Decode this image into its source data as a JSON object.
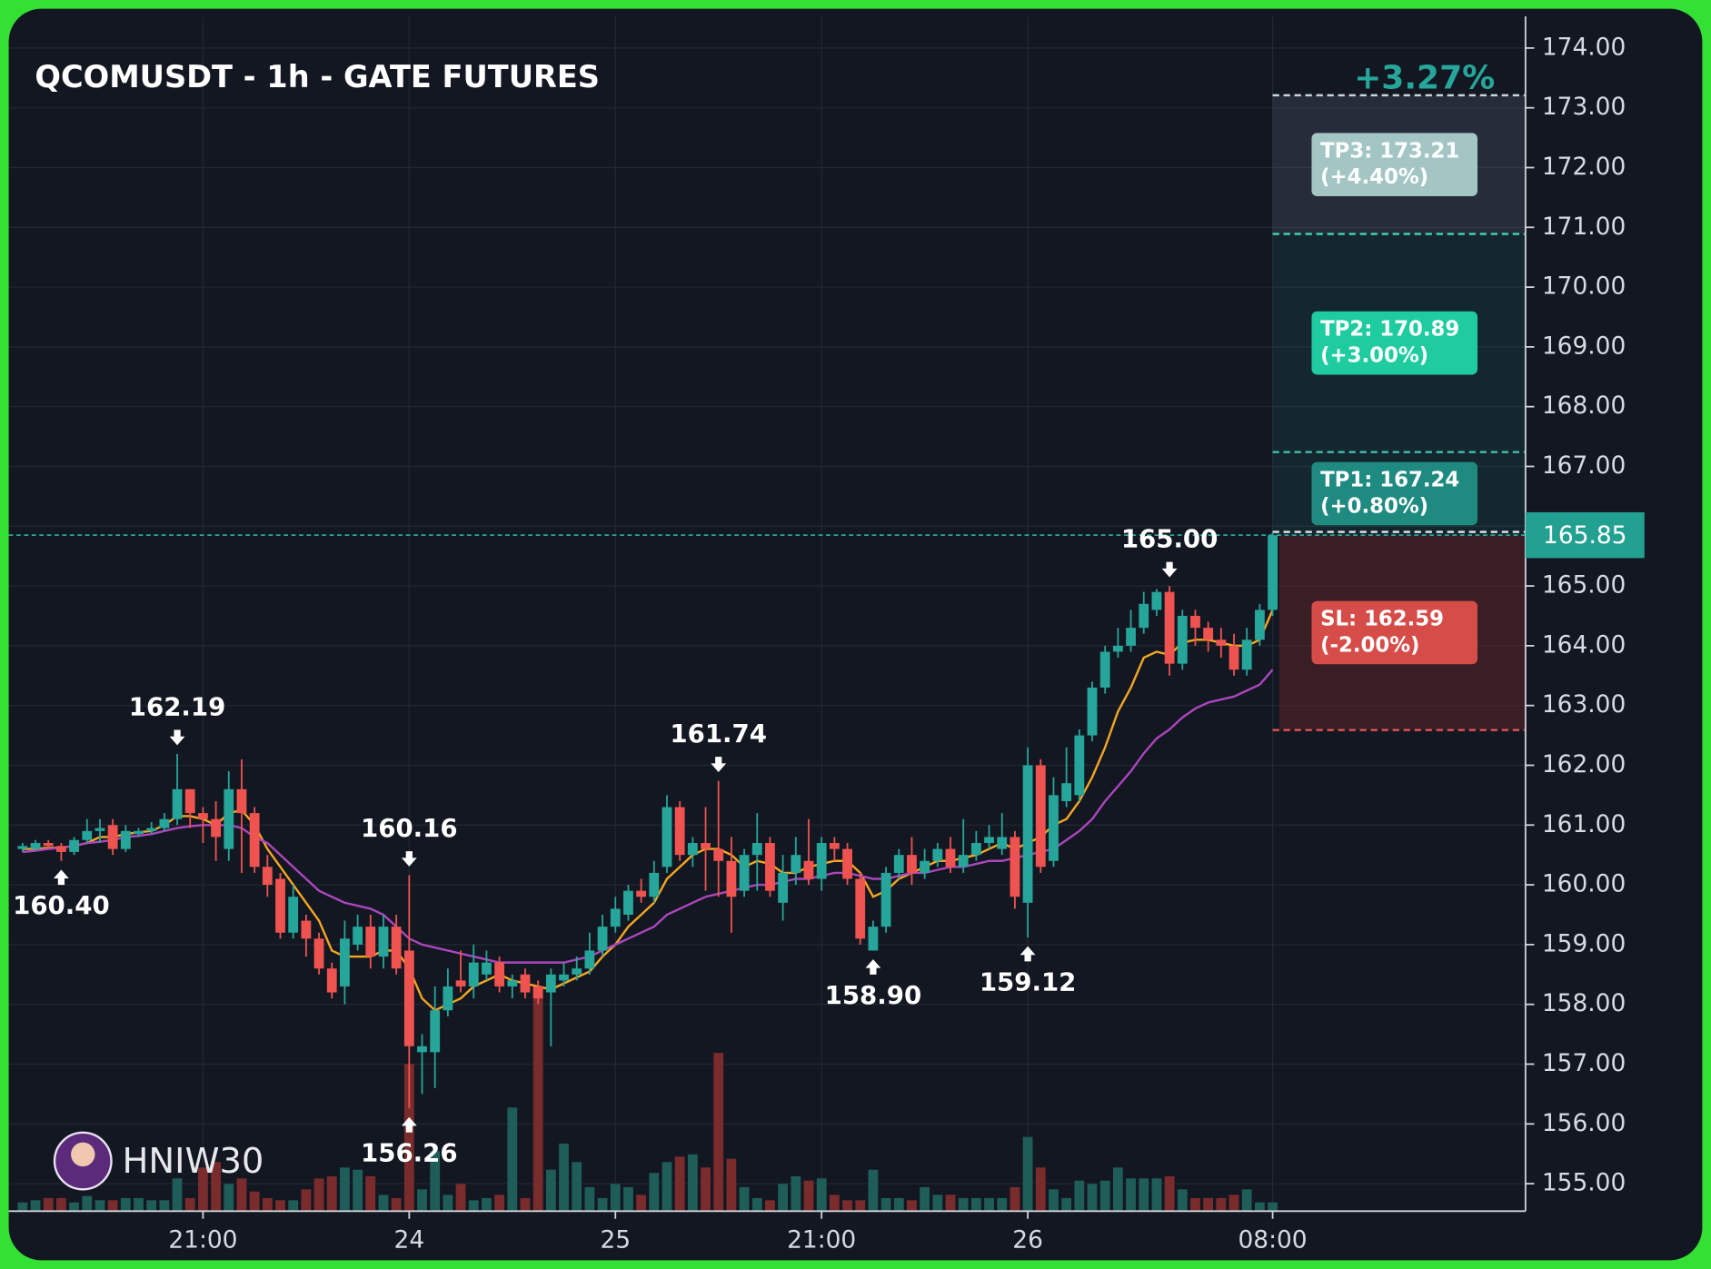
{
  "chart_data": {
    "type": "candlestick",
    "title": "QCOMUSDT - 1h - GATE FUTURES",
    "change_label": "+3.27%",
    "watermark": "HNIW30",
    "up_color": "#26a69a",
    "down_color": "#ef5350",
    "grid": true,
    "categories": [
      null,
      null,
      null,
      null,
      null,
      null,
      null,
      null,
      null,
      null,
      null,
      null,
      null,
      null,
      "21:00",
      null,
      null,
      null,
      null,
      null,
      null,
      null,
      null,
      null,
      null,
      null,
      null,
      null,
      null,
      null,
      "24",
      null,
      null,
      null,
      null,
      null,
      null,
      null,
      null,
      null,
      null,
      null,
      null,
      null,
      null,
      null,
      "25",
      null,
      null,
      null,
      null,
      null,
      null,
      null,
      null,
      null,
      null,
      null,
      null,
      null,
      null,
      null,
      "21:00",
      null,
      null,
      null,
      null,
      null,
      null,
      null,
      null,
      null,
      null,
      null,
      null,
      null,
      null,
      null,
      "26",
      null,
      null,
      null,
      null,
      null,
      null,
      null,
      null,
      null,
      null,
      null,
      null,
      null,
      null,
      null,
      null,
      null,
      null,
      "08:00"
    ],
    "ohlc": [
      [
        160.6,
        160.7,
        160.55,
        160.65
      ],
      [
        160.6,
        160.75,
        160.58,
        160.7
      ],
      [
        160.7,
        160.75,
        160.6,
        160.65
      ],
      [
        160.65,
        160.7,
        160.4,
        160.55
      ],
      [
        160.55,
        160.8,
        160.5,
        160.75
      ],
      [
        160.75,
        161.1,
        160.7,
        160.9
      ],
      [
        160.9,
        161.1,
        160.7,
        160.95
      ],
      [
        161.0,
        161.1,
        160.5,
        160.6
      ],
      [
        160.6,
        161.0,
        160.55,
        160.9
      ],
      [
        160.85,
        160.95,
        160.8,
        160.9
      ],
      [
        160.9,
        161.05,
        160.85,
        160.95
      ],
      [
        160.95,
        161.2,
        160.9,
        161.1
      ],
      [
        161.1,
        162.19,
        161.0,
        161.6
      ],
      [
        161.6,
        161.6,
        160.95,
        161.2
      ],
      [
        161.2,
        161.3,
        160.7,
        161.1
      ],
      [
        161.1,
        161.4,
        160.4,
        160.8
      ],
      [
        160.6,
        161.9,
        160.4,
        161.6
      ],
      [
        161.6,
        162.1,
        160.2,
        161.2
      ],
      [
        161.2,
        161.3,
        160.2,
        160.3
      ],
      [
        160.3,
        160.5,
        159.8,
        160.0
      ],
      [
        160.1,
        160.2,
        159.1,
        159.2
      ],
      [
        159.2,
        160.0,
        159.1,
        159.8
      ],
      [
        159.4,
        159.5,
        158.8,
        159.1
      ],
      [
        159.1,
        159.2,
        158.5,
        158.6
      ],
      [
        158.6,
        158.7,
        158.1,
        158.2
      ],
      [
        158.3,
        159.4,
        158.0,
        159.1
      ],
      [
        159.0,
        159.5,
        158.9,
        159.3
      ],
      [
        159.3,
        159.5,
        158.6,
        158.8
      ],
      [
        158.8,
        159.5,
        158.6,
        159.3
      ],
      [
        159.3,
        159.5,
        158.5,
        158.6
      ],
      [
        158.9,
        160.16,
        156.26,
        157.3
      ],
      [
        157.2,
        157.5,
        156.5,
        157.3
      ],
      [
        157.2,
        158.3,
        156.6,
        157.9
      ],
      [
        157.9,
        158.6,
        157.8,
        158.3
      ],
      [
        158.4,
        158.9,
        158.2,
        158.3
      ],
      [
        158.3,
        159.0,
        158.1,
        158.7
      ],
      [
        158.5,
        158.9,
        158.4,
        158.7
      ],
      [
        158.7,
        158.8,
        158.2,
        158.3
      ],
      [
        158.3,
        158.5,
        158.1,
        158.4
      ],
      [
        158.5,
        158.6,
        158.1,
        158.2
      ],
      [
        158.3,
        158.4,
        158.0,
        158.1
      ],
      [
        158.2,
        158.6,
        157.3,
        158.5
      ],
      [
        158.4,
        158.7,
        158.3,
        158.5
      ],
      [
        158.5,
        158.8,
        158.4,
        158.6
      ],
      [
        158.6,
        159.2,
        158.5,
        158.9
      ],
      [
        158.9,
        159.5,
        158.8,
        159.3
      ],
      [
        159.3,
        159.8,
        159.2,
        159.6
      ],
      [
        159.5,
        160.0,
        159.4,
        159.9
      ],
      [
        159.9,
        160.1,
        159.7,
        159.8
      ],
      [
        159.8,
        160.4,
        159.7,
        160.2
      ],
      [
        160.3,
        161.5,
        160.2,
        161.3
      ],
      [
        161.3,
        161.4,
        160.4,
        160.5
      ],
      [
        160.5,
        160.8,
        160.3,
        160.7
      ],
      [
        160.7,
        161.3,
        159.9,
        160.6
      ],
      [
        160.6,
        161.74,
        159.8,
        160.4
      ],
      [
        160.4,
        160.8,
        159.2,
        159.8
      ],
      [
        159.9,
        160.6,
        159.8,
        160.5
      ],
      [
        160.5,
        161.2,
        159.9,
        160.7
      ],
      [
        160.7,
        160.8,
        159.8,
        159.9
      ],
      [
        159.7,
        160.5,
        159.4,
        160.2
      ],
      [
        160.2,
        160.8,
        160.0,
        160.5
      ],
      [
        160.4,
        161.1,
        160.0,
        160.1
      ],
      [
        160.1,
        160.8,
        159.9,
        160.7
      ],
      [
        160.7,
        160.8,
        160.4,
        160.6
      ],
      [
        160.6,
        160.7,
        160.0,
        160.1
      ],
      [
        160.1,
        160.2,
        159.0,
        159.1
      ],
      [
        158.9,
        159.4,
        158.9,
        159.3
      ],
      [
        159.3,
        160.3,
        159.2,
        160.2
      ],
      [
        160.2,
        160.6,
        160.1,
        160.5
      ],
      [
        160.5,
        160.8,
        160.0,
        160.2
      ],
      [
        160.2,
        160.6,
        160.1,
        160.4
      ],
      [
        160.4,
        160.7,
        160.3,
        160.6
      ],
      [
        160.6,
        160.8,
        160.2,
        160.3
      ],
      [
        160.3,
        161.1,
        160.2,
        160.5
      ],
      [
        160.5,
        160.9,
        160.4,
        160.7
      ],
      [
        160.7,
        161.0,
        160.6,
        160.8
      ],
      [
        160.6,
        161.2,
        160.5,
        160.8
      ],
      [
        160.8,
        160.9,
        159.6,
        159.8
      ],
      [
        159.7,
        162.3,
        159.12,
        162.0
      ],
      [
        162.0,
        162.1,
        160.2,
        160.3
      ],
      [
        160.4,
        161.8,
        160.3,
        161.5
      ],
      [
        161.4,
        162.3,
        161.3,
        161.7
      ],
      [
        161.5,
        162.6,
        161.4,
        162.5
      ],
      [
        162.5,
        163.4,
        162.4,
        163.3
      ],
      [
        163.3,
        164.0,
        163.2,
        163.9
      ],
      [
        163.9,
        164.3,
        163.8,
        164.0
      ],
      [
        164.0,
        164.6,
        163.9,
        164.3
      ],
      [
        164.3,
        164.9,
        164.2,
        164.7
      ],
      [
        164.6,
        164.95,
        164.5,
        164.9
      ],
      [
        164.9,
        165.0,
        163.5,
        163.7
      ],
      [
        163.7,
        164.6,
        163.6,
        164.5
      ],
      [
        164.5,
        164.6,
        164.0,
        164.3
      ],
      [
        164.3,
        164.4,
        163.9,
        164.1
      ],
      [
        164.1,
        164.3,
        163.8,
        164.0
      ],
      [
        164.0,
        164.2,
        163.5,
        163.6
      ],
      [
        163.6,
        164.3,
        163.5,
        164.1
      ],
      [
        164.1,
        164.7,
        164.0,
        164.6
      ],
      [
        164.6,
        165.9,
        164.5,
        165.85
      ]
    ],
    "volume": [
      8,
      10,
      12,
      12,
      8,
      14,
      10,
      10,
      12,
      12,
      10,
      10,
      30,
      12,
      40,
      45,
      25,
      30,
      18,
      12,
      10,
      10,
      20,
      30,
      32,
      40,
      38,
      32,
      15,
      12,
      135,
      20,
      55,
      15,
      25,
      10,
      12,
      15,
      95,
      12,
      205,
      38,
      62,
      45,
      22,
      12,
      25,
      22,
      15,
      35,
      45,
      50,
      52,
      40,
      145,
      48,
      22,
      12,
      10,
      25,
      32,
      28,
      30,
      15,
      10,
      10,
      38,
      12,
      12,
      10,
      22,
      15,
      15,
      12,
      12,
      12,
      12,
      22,
      68,
      40,
      20,
      12,
      28,
      25,
      28,
      40,
      30,
      30,
      30,
      32,
      20,
      12,
      12,
      12,
      15,
      20,
      8,
      8
    ],
    "lines": [
      {
        "color": "#f5a623",
        "values": [
          160.6,
          160.6,
          160.62,
          160.62,
          160.65,
          160.7,
          160.8,
          160.8,
          160.85,
          160.88,
          160.9,
          161.0,
          161.15,
          161.15,
          161.1,
          161.0,
          161.2,
          161.25,
          161.0,
          160.6,
          160.3,
          160.0,
          159.7,
          159.4,
          158.9,
          158.8,
          158.8,
          158.8,
          158.9,
          158.9,
          158.6,
          158.1,
          157.9,
          158.0,
          158.1,
          158.3,
          158.4,
          158.5,
          158.4,
          158.35,
          158.3,
          158.25,
          158.35,
          158.45,
          158.55,
          158.8,
          159.0,
          159.3,
          159.5,
          159.7,
          160.1,
          160.3,
          160.5,
          160.6,
          160.6,
          160.5,
          160.3,
          160.4,
          160.35,
          160.2,
          160.2,
          160.3,
          160.35,
          160.4,
          160.4,
          160.2,
          159.8,
          159.9,
          160.1,
          160.2,
          160.3,
          160.4,
          160.4,
          160.45,
          160.5,
          160.6,
          160.7,
          160.6,
          160.7,
          160.8,
          161.0,
          161.1,
          161.4,
          161.8,
          162.3,
          162.9,
          163.3,
          163.8,
          163.9,
          163.85,
          164.05,
          164.1,
          164.1,
          164.05,
          164.0,
          164.0,
          164.1,
          164.6
        ]
      },
      {
        "color": "#ab47bc",
        "values": [
          160.55,
          160.57,
          160.6,
          160.62,
          160.65,
          160.7,
          160.72,
          160.75,
          160.8,
          160.82,
          160.85,
          160.9,
          160.95,
          160.98,
          161.0,
          161.0,
          161.0,
          160.95,
          160.8,
          160.7,
          160.5,
          160.3,
          160.1,
          159.9,
          159.8,
          159.7,
          159.65,
          159.6,
          159.5,
          159.3,
          159.1,
          159.0,
          158.95,
          158.9,
          158.85,
          158.8,
          158.75,
          158.7,
          158.7,
          158.7,
          158.7,
          158.7,
          158.7,
          158.75,
          158.8,
          158.9,
          159.0,
          159.1,
          159.2,
          159.3,
          159.5,
          159.6,
          159.7,
          159.8,
          159.85,
          159.9,
          159.95,
          160.0,
          160.0,
          160.05,
          160.1,
          160.1,
          160.15,
          160.2,
          160.2,
          160.15,
          160.1,
          160.1,
          160.15,
          160.2,
          160.2,
          160.25,
          160.3,
          160.3,
          160.35,
          160.4,
          160.4,
          160.45,
          160.5,
          160.55,
          160.6,
          160.75,
          160.9,
          161.1,
          161.4,
          161.65,
          161.9,
          162.2,
          162.45,
          162.6,
          162.8,
          162.95,
          163.05,
          163.1,
          163.15,
          163.25,
          163.35,
          163.6
        ]
      }
    ],
    "ylim": [
      154.54,
      174.53
    ],
    "yticks": [
      {
        "value": 155,
        "label": "155.00"
      },
      {
        "value": 156,
        "label": "156.00"
      },
      {
        "value": 157,
        "label": "157.00"
      },
      {
        "value": 158,
        "label": "158.00"
      },
      {
        "value": 159,
        "label": "159.00"
      },
      {
        "value": 160,
        "label": "160.00"
      },
      {
        "value": 161,
        "label": "161.00"
      },
      {
        "value": 162,
        "label": "162.00"
      },
      {
        "value": 163,
        "label": "163.00"
      },
      {
        "value": 164,
        "label": "164.00"
      },
      {
        "value": 165,
        "label": "165.00"
      },
      {
        "value": 166,
        "label": "166.00"
      },
      {
        "value": 167,
        "label": "167.00"
      },
      {
        "value": 168,
        "label": "168.00"
      },
      {
        "value": 169,
        "label": "169.00"
      },
      {
        "value": 170,
        "label": "170.00"
      },
      {
        "value": 171,
        "label": "171.00"
      },
      {
        "value": 172,
        "label": "172.00"
      },
      {
        "value": 173,
        "label": "173.00"
      },
      {
        "value": 174,
        "label": "174.00"
      }
    ],
    "annotations": [
      {
        "index": 12,
        "value": 162.19,
        "label": "162.19",
        "position": "above"
      },
      {
        "index": 3,
        "value": 160.4,
        "label": "160.40",
        "position": "below"
      },
      {
        "index": 30,
        "value": 160.16,
        "label": "160.16",
        "position": "above"
      },
      {
        "index": 30,
        "value": 156.26,
        "label": "156.26",
        "position": "below"
      },
      {
        "index": 54,
        "value": 161.74,
        "label": "161.74",
        "position": "above"
      },
      {
        "index": 66,
        "value": 158.9,
        "label": "158.90",
        "position": "below"
      },
      {
        "index": 78,
        "value": 159.12,
        "label": "159.12",
        "position": "below"
      },
      {
        "index": 89,
        "value": 165.0,
        "label": "165.00",
        "position": "above"
      }
    ],
    "last_price": {
      "value": 165.85,
      "label": "165.85"
    },
    "targets": [
      {
        "label": "TP3: 173.21",
        "sub_label": "(+4.40%)",
        "value": 173.21,
        "color": "#a3c6c4",
        "zone_color": "rgba(110,125,140,0.22)",
        "line_color": "#c8d6d6"
      },
      {
        "label": "TP2: 170.89",
        "sub_label": "(+3.00%)",
        "value": 170.89,
        "color": "#1fcc9f",
        "zone_color": "rgba(28,150,130,0.13)",
        "line_color": "#3fd6b8"
      },
      {
        "label": "TP1: 167.24",
        "sub_label": "(+0.80%)",
        "value": 167.24,
        "color": "#1f8a80",
        "zone_color": "rgba(28,150,130,0.13)",
        "line_color": "#3fbfae"
      }
    ],
    "stop": {
      "label": "SL: 162.59",
      "sub_label": "(-2.00%)",
      "value": 162.59,
      "color": "#d64c49",
      "zone_color": "rgba(120,40,45,0.4)",
      "line_color": "#e05552"
    }
  }
}
